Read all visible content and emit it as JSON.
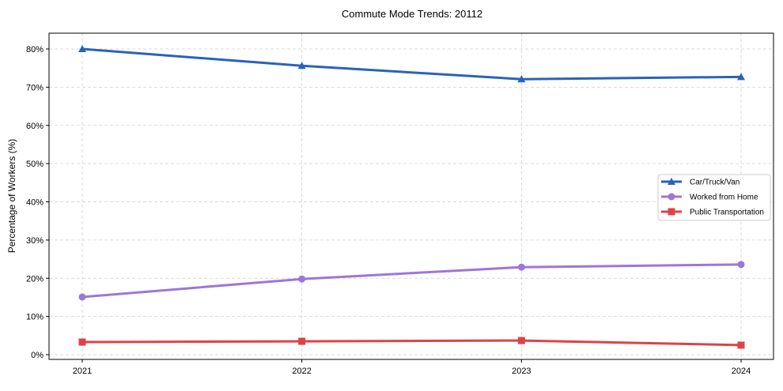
{
  "chart_data": {
    "type": "line",
    "title": "Commute Mode Trends: 20112",
    "xlabel": "",
    "ylabel": "Percentage of Workers (%)",
    "x": [
      "2021",
      "2022",
      "2023",
      "2024"
    ],
    "ylim": [
      -1,
      84
    ],
    "yticks": [
      0,
      10,
      20,
      30,
      40,
      50,
      60,
      70,
      80
    ],
    "ytick_labels": [
      "0%",
      "10%",
      "20%",
      "30%",
      "40%",
      "50%",
      "60%",
      "70%",
      "80%"
    ],
    "grid": true,
    "legend_position": "center-right",
    "series": [
      {
        "name": "Car/Truck/Van",
        "color": "#2a62b9",
        "marker": "triangle",
        "values": [
          80.0,
          75.6,
          72.1,
          72.7
        ]
      },
      {
        "name": "Worked from Home",
        "color": "#9b77d9",
        "marker": "circle",
        "values": [
          15.1,
          19.8,
          22.9,
          23.6
        ]
      },
      {
        "name": "Public Transportation",
        "color": "#dd4347",
        "marker": "square",
        "values": [
          3.3,
          3.5,
          3.7,
          2.5
        ]
      }
    ]
  }
}
